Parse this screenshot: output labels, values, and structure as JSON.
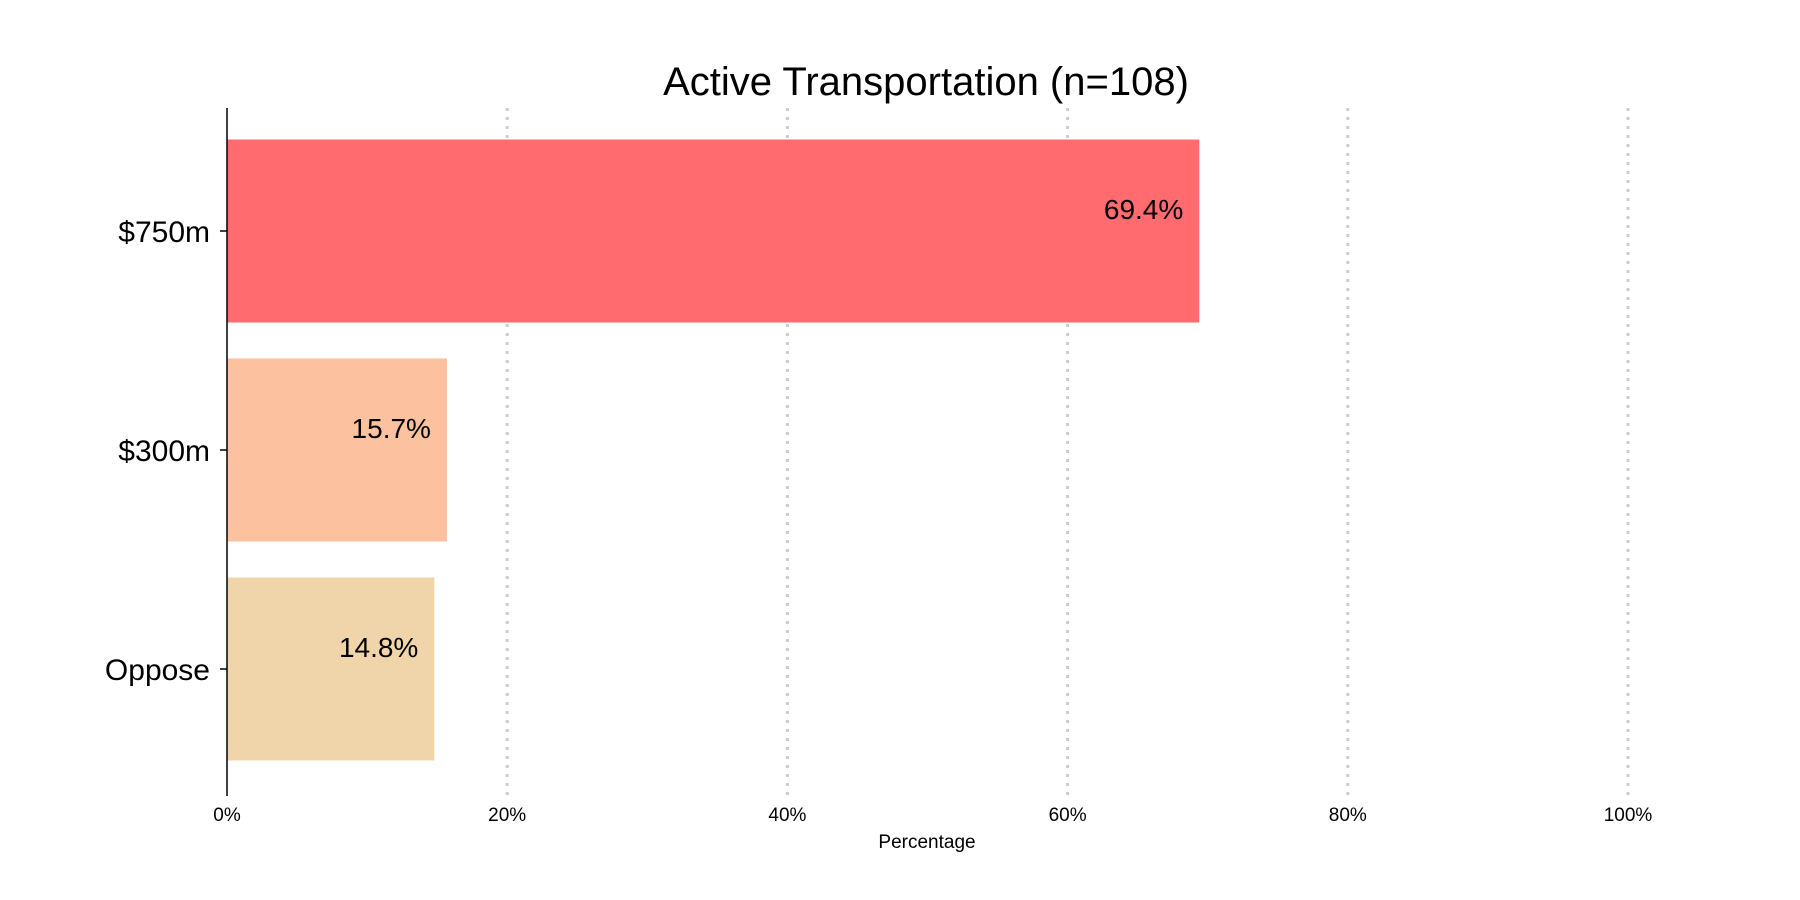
{
  "chart_data": {
    "type": "bar",
    "orientation": "horizontal",
    "title": "Active Transportation (n=108)",
    "xlabel": "Percentage",
    "ylabel": "",
    "categories": [
      "$750m",
      "$300m",
      "Oppose"
    ],
    "values": [
      69.4,
      15.7,
      14.8
    ],
    "data_labels": [
      "69.4%",
      "15.7%",
      "14.8%"
    ],
    "colors": [
      "#ff6b6f",
      "#fcc19f",
      "#f1d5aa"
    ],
    "xlim": [
      0,
      100
    ],
    "x_ticks": [
      0,
      20,
      40,
      60,
      80,
      100
    ],
    "x_tick_labels": [
      "0%",
      "20%",
      "40%",
      "60%",
      "80%",
      "100%"
    ],
    "grid": true,
    "legend": "none"
  }
}
